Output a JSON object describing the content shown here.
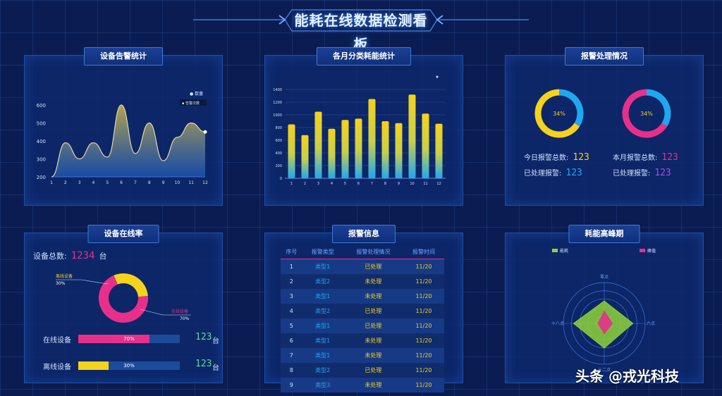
{
  "title": "能耗在线数据检测看板",
  "watermark": "头条 @戎光科技",
  "colors": {
    "yellow": "#f5d21c",
    "blue": "#1fa8f0",
    "pink": "#e8308a",
    "green": "#8ed23a",
    "purple": "#b44ae0"
  },
  "panels": {
    "line_title": "设备告警统计",
    "bar_title": "各月分类耗能统计",
    "handle_title": "报警处理情况",
    "online_title": "设备在线率",
    "alarm_title": "报警信息",
    "radar_title": "耗能高峰期"
  },
  "line_legend": [
    "数量",
    "告警次数"
  ],
  "bar_legend": "",
  "handle": {
    "ring1_label": "34%",
    "ring2_label": "34%",
    "left_rows": [
      {
        "label": "今日报警总数:",
        "value": "123"
      },
      {
        "label": "已处理报警:",
        "value": "123"
      }
    ],
    "right_rows": [
      {
        "label": "本月报警总数:",
        "value": "123"
      },
      {
        "label": "已处理报警:",
        "value": "123"
      }
    ]
  },
  "online": {
    "total_label": "设备总数:",
    "total_value": "1234",
    "total_unit": "台",
    "offline_label": "离线设备",
    "offline_pct": "30%",
    "online_label": "在线设备",
    "online_pct": "70%",
    "bars": [
      {
        "label": "在线设备",
        "fraction": 0.7,
        "text": "70%",
        "count": "123",
        "unit": "台"
      },
      {
        "label": "离线设备",
        "fraction": 0.3,
        "text": "30%",
        "count": "123",
        "unit": "台"
      }
    ]
  },
  "alarm_table": {
    "headers": [
      "序号",
      "报警类型",
      "报警处理情况",
      "报警时间"
    ],
    "rows": [
      [
        "1",
        "类型1",
        "已处理",
        "11/20"
      ],
      [
        "2",
        "类型2",
        "未处理",
        "11/20"
      ],
      [
        "3",
        "类型1",
        "未处理",
        "11/20"
      ],
      [
        "4",
        "类型2",
        "已处理",
        "11/20"
      ],
      [
        "5",
        "类型1",
        "已处理",
        "11/20"
      ],
      [
        "6",
        "类型1",
        "未处理",
        "11/20"
      ],
      [
        "7",
        "类型1",
        "未处理",
        "11/20"
      ],
      [
        "8",
        "类型2",
        "已处理",
        "11/20"
      ],
      [
        "9",
        "类型3",
        "未处理",
        "11/20"
      ]
    ]
  },
  "chart_data": [
    {
      "type": "area",
      "title": "设备告警统计",
      "x": [
        1,
        2,
        3,
        4,
        5,
        6,
        7,
        8,
        9,
        10,
        11,
        12
      ],
      "series": [
        {
          "name": "数量",
          "values": [
            200,
            390,
            300,
            390,
            310,
            600,
            330,
            500,
            290,
            420,
            500,
            450
          ]
        }
      ],
      "yticks": [
        200,
        300,
        400,
        500,
        600
      ],
      "ylim": [
        200,
        600
      ],
      "grid": false,
      "legend": "top-right"
    },
    {
      "type": "bar",
      "title": "各月分类耗能统计",
      "categories": [
        "1",
        "2",
        "3",
        "4",
        "5",
        "6",
        "7",
        "8",
        "9",
        "10",
        "11",
        "12"
      ],
      "values": [
        850,
        680,
        1050,
        780,
        920,
        940,
        1250,
        900,
        870,
        1320,
        1020,
        860
      ],
      "yticks": [
        0,
        200,
        400,
        600,
        800,
        1000,
        1200,
        1400
      ],
      "ylim": [
        0,
        1400
      ],
      "grid": true
    },
    {
      "type": "pie",
      "title": "设备在线率",
      "slices": [
        {
          "label": "离线设备",
          "value": 30
        },
        {
          "label": "在线设备",
          "value": 70
        }
      ]
    },
    {
      "type": "pie",
      "title": "报警处理情况",
      "slices": [
        {
          "label": "已处理",
          "value": 34
        },
        {
          "label": "未处理",
          "value": 66
        }
      ]
    },
    {
      "type": "pie",
      "title": "报警处理情况",
      "slices": [
        {
          "label": "已处理",
          "value": 34
        },
        {
          "label": "未处理",
          "value": 66
        }
      ]
    },
    {
      "type": "radar",
      "title": "耗能高峰期",
      "legend": [
        "能耗",
        "峰值"
      ],
      "axes": [
        "零点",
        "六点",
        "十二点",
        "十八点"
      ],
      "series": [
        {
          "name": "能耗",
          "values": [
            0.55,
            0.7,
            0.6,
            0.75
          ]
        },
        {
          "name": "峰值",
          "values": [
            0.3,
            0.2,
            0.25,
            0.15
          ]
        }
      ]
    }
  ]
}
